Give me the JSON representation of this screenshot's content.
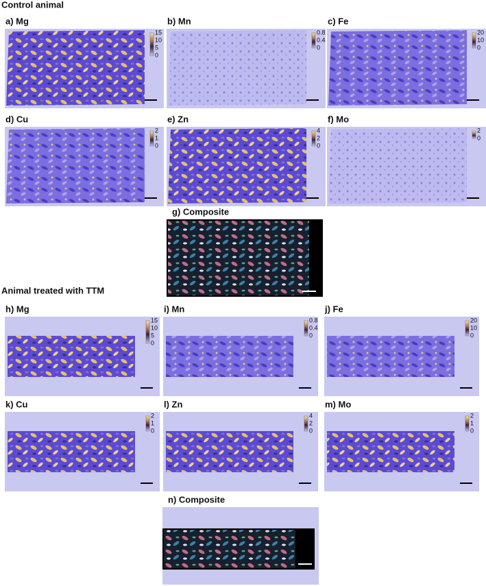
{
  "sections": [
    {
      "title": "Control animal",
      "panels": [
        {
          "label": "a) Mg",
          "colorbar": [
            15,
            10,
            5,
            0
          ]
        },
        {
          "label": "b) Mn",
          "colorbar": [
            0.8,
            0.4,
            0
          ]
        },
        {
          "label": "c) Fe",
          "colorbar": [
            20,
            10,
            0
          ]
        },
        {
          "label": "d) Cu",
          "colorbar": [
            2,
            1,
            0
          ]
        },
        {
          "label": "e) Zn",
          "colorbar": [
            4,
            2,
            0
          ]
        },
        {
          "label": "f) Mo",
          "colorbar": [
            2,
            0
          ]
        }
      ],
      "composite": {
        "label": "g) Composite"
      }
    },
    {
      "title": "Animal treated with TTM",
      "panels": [
        {
          "label": "h) Mg",
          "colorbar": [
            15,
            10,
            5,
            0
          ]
        },
        {
          "label": "i) Mn",
          "colorbar": [
            0.8,
            0.4,
            0
          ]
        },
        {
          "label": "j) Fe",
          "colorbar": [
            20,
            10,
            0
          ]
        },
        {
          "label": "k) Cu",
          "colorbar": [
            2,
            1,
            0
          ]
        },
        {
          "label": "l) Zn",
          "colorbar": [
            4,
            2,
            0
          ]
        },
        {
          "label": "m) Mo",
          "colorbar": [
            2,
            1,
            0
          ]
        }
      ],
      "composite": {
        "label": "n) Composite"
      }
    }
  ]
}
